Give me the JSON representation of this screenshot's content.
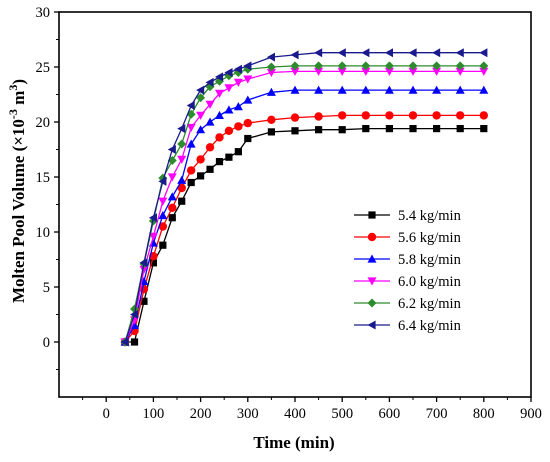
{
  "chart_data": {
    "type": "line",
    "title": "",
    "xlabel": "Time (min)",
    "ylabel_main": "Molten Pool Volume (×10",
    "ylabel_exp": "-3",
    "ylabel_unit": " m",
    "ylabel_unit_exp": "3",
    "ylabel_close": ")",
    "xlim": [
      -100,
      900
    ],
    "ylim": [
      -5,
      30
    ],
    "xticks": [
      0,
      100,
      200,
      300,
      400,
      500,
      600,
      700,
      800,
      900
    ],
    "yticks": [
      0,
      5,
      10,
      15,
      20,
      25,
      30
    ],
    "legend_position": "lower-right",
    "series": [
      {
        "name": "5.4 kg/min",
        "color": "#000000",
        "marker": "square",
        "x": [
          40,
          60,
          80,
          100,
          120,
          140,
          160,
          180,
          200,
          220,
          240,
          260,
          280,
          300,
          350,
          400,
          450,
          500,
          550,
          600,
          650,
          700,
          750,
          800
        ],
        "y": [
          0,
          0,
          3.7,
          7.2,
          8.8,
          11.3,
          12.8,
          14.5,
          15.1,
          15.7,
          16.4,
          16.8,
          17.3,
          18.5,
          19.1,
          19.2,
          19.3,
          19.3,
          19.4,
          19.4,
          19.4,
          19.4,
          19.4,
          19.4
        ]
      },
      {
        "name": "5.6 kg/min",
        "color": "#ff0000",
        "marker": "circle",
        "x": [
          40,
          60,
          80,
          100,
          120,
          140,
          160,
          180,
          200,
          220,
          240,
          260,
          280,
          300,
          350,
          400,
          450,
          500,
          550,
          600,
          650,
          700,
          750,
          800
        ],
        "y": [
          0,
          1.0,
          4.8,
          7.8,
          10.5,
          12.2,
          14.0,
          15.6,
          16.6,
          17.7,
          18.6,
          19.2,
          19.6,
          19.9,
          20.2,
          20.4,
          20.5,
          20.6,
          20.6,
          20.6,
          20.6,
          20.6,
          20.6,
          20.6
        ]
      },
      {
        "name": "5.8 kg/min",
        "color": "#0000ff",
        "marker": "triangle-up",
        "x": [
          40,
          60,
          80,
          100,
          120,
          140,
          160,
          180,
          200,
          220,
          240,
          260,
          280,
          300,
          350,
          400,
          450,
          500,
          550,
          600,
          650,
          700,
          750,
          800
        ],
        "y": [
          0,
          1.5,
          5.5,
          9.0,
          11.5,
          13.2,
          14.7,
          18.0,
          19.3,
          20.0,
          20.6,
          21.1,
          21.4,
          22.0,
          22.7,
          22.9,
          22.9,
          22.9,
          22.9,
          22.9,
          22.9,
          22.9,
          22.9,
          22.9
        ]
      },
      {
        "name": "6.0 kg/min",
        "color": "#ff00ff",
        "marker": "triangle-down",
        "x": [
          40,
          60,
          80,
          100,
          120,
          140,
          160,
          180,
          200,
          220,
          240,
          260,
          280,
          300,
          350,
          400,
          450,
          500,
          550,
          600,
          650,
          700,
          750,
          800
        ],
        "y": [
          0,
          2.0,
          6.6,
          9.6,
          12.8,
          15.0,
          16.6,
          19.5,
          20.6,
          21.6,
          22.6,
          23.1,
          23.6,
          23.9,
          24.5,
          24.6,
          24.6,
          24.6,
          24.6,
          24.6,
          24.6,
          24.6,
          24.6,
          24.6
        ]
      },
      {
        "name": "6.2 kg/min",
        "color": "#2e8b2e",
        "marker": "diamond",
        "x": [
          40,
          60,
          80,
          100,
          120,
          140,
          160,
          180,
          200,
          220,
          240,
          260,
          280,
          300,
          350,
          400,
          450,
          500,
          550,
          600,
          650,
          700,
          750,
          800
        ],
        "y": [
          0,
          3.0,
          7.1,
          11.0,
          14.9,
          16.5,
          18.0,
          20.7,
          22.2,
          23.2,
          23.7,
          24.2,
          24.5,
          24.8,
          25.0,
          25.1,
          25.1,
          25.1,
          25.1,
          25.1,
          25.1,
          25.1,
          25.1,
          25.1
        ]
      },
      {
        "name": "6.4 kg/min",
        "color": "#1a1a8c",
        "marker": "triangle-left",
        "x": [
          40,
          60,
          80,
          100,
          120,
          140,
          160,
          180,
          200,
          220,
          240,
          260,
          280,
          300,
          350,
          400,
          450,
          500,
          550,
          600,
          650,
          700,
          750,
          800
        ],
        "y": [
          0,
          2.5,
          7.2,
          11.3,
          14.6,
          17.5,
          19.4,
          21.5,
          22.9,
          23.6,
          24.1,
          24.5,
          24.8,
          25.1,
          25.9,
          26.1,
          26.3,
          26.3,
          26.3,
          26.3,
          26.3,
          26.3,
          26.3,
          26.3
        ]
      }
    ]
  }
}
